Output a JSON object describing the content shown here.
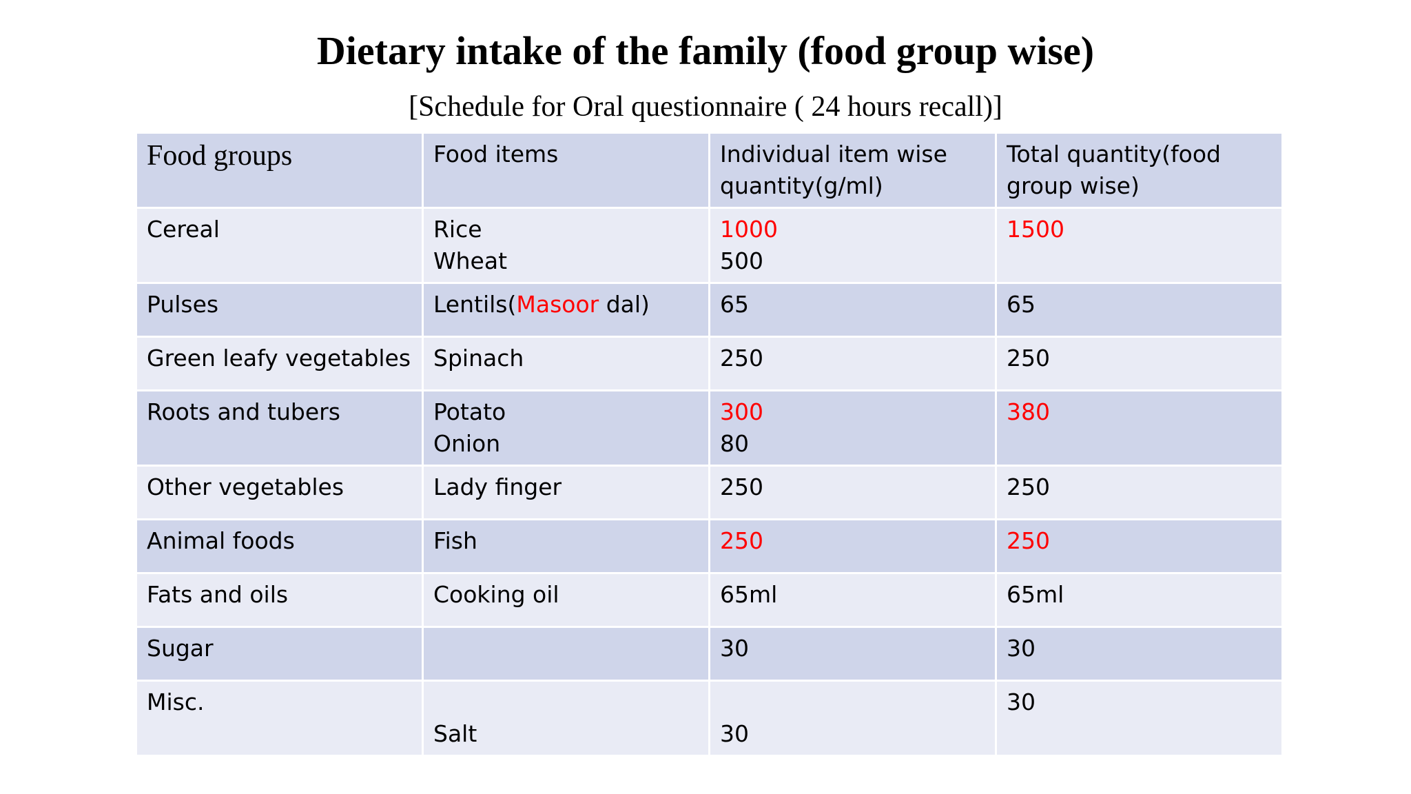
{
  "title": "Dietary intake of the family (food group wise)",
  "subtitle": "[Schedule for Oral questionnaire ( 24 hours recall)]",
  "headers": {
    "food_groups": "Food groups",
    "food_items": "Food items",
    "item_quantity_1": "Individual item wise",
    "item_quantity_2": "quantity(g/ml)",
    "total_quantity_1": "Total quantity(food",
    "total_quantity_2": "group wise)"
  },
  "highlight_color": "#ff0000",
  "rows": {
    "cereal": {
      "group": "Cereal",
      "item_1": "Rice",
      "item_2": "Wheat",
      "qty_1": "1000",
      "qty_2": "500",
      "total": "1500"
    },
    "pulses": {
      "group": "Pulses",
      "item_prefix": "Lentils(",
      "item_highlight": "Masoor",
      "item_suffix": " dal)",
      "qty": "65",
      "total": "65"
    },
    "green_leafy": {
      "group": "Green leafy vegetables",
      "item": "Spinach",
      "qty": "250",
      "total": "250"
    },
    "roots_tubers": {
      "group": "Roots and tubers",
      "item_1": "Potato",
      "item_2": "Onion",
      "qty_1": "300",
      "qty_2": "80",
      "total": "380"
    },
    "other_veg": {
      "group": "Other vegetables",
      "item": "Lady finger",
      "qty": "250",
      "total": "250"
    },
    "animal_foods": {
      "group": "Animal foods",
      "item": "Fish",
      "qty": "250",
      "total": "250"
    },
    "fats_oils": {
      "group": "Fats and oils",
      "item": "Cooking oil",
      "qty": "65ml",
      "total": "65ml"
    },
    "sugar": {
      "group": "Sugar",
      "item": "",
      "qty": "30",
      "total": "30"
    },
    "misc": {
      "group": "Misc.",
      "item": "Salt",
      "qty": "30",
      "total": "30"
    }
  }
}
